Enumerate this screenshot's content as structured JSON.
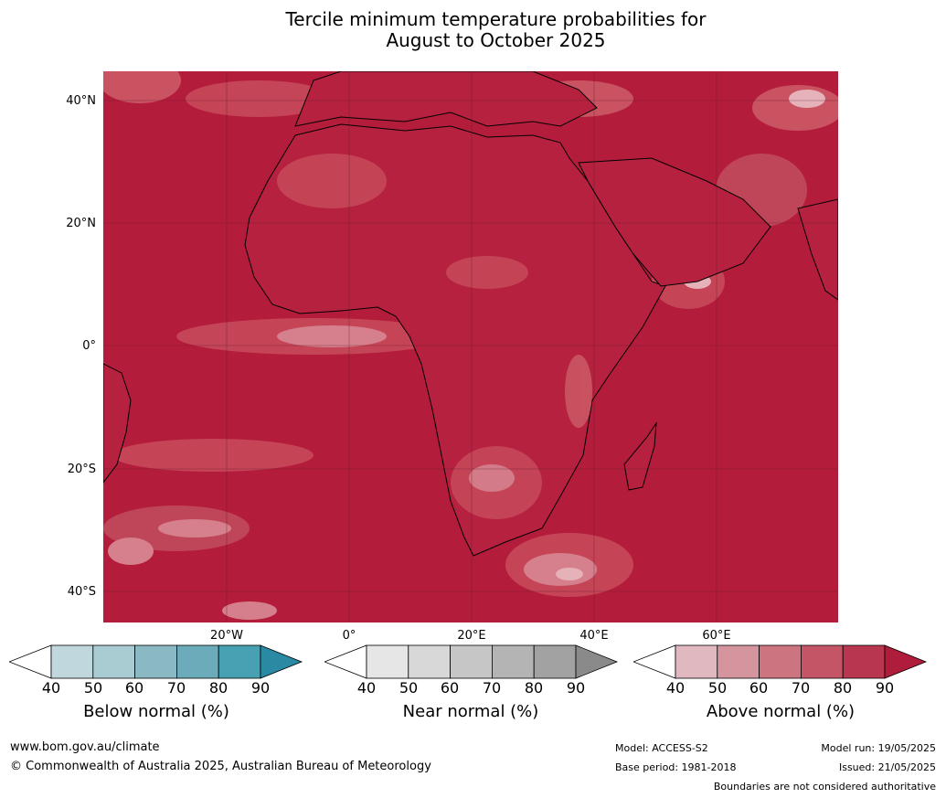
{
  "title_line1": "Tercile minimum temperature probabilities for",
  "title_line2": "August to October 2025",
  "lat_labels": [
    "40°N",
    "20°N",
    "0°",
    "20°S",
    "40°S"
  ],
  "lon_labels": [
    "20°W",
    "0°",
    "20°E",
    "40°E",
    "60°E"
  ],
  "colorbars": [
    {
      "title": "Below normal (%)",
      "ticks": [
        "40",
        "50",
        "60",
        "70",
        "80",
        "90"
      ],
      "colors": [
        "#c0d8dd",
        "#a9cbd2",
        "#8ab9c4",
        "#6cacba",
        "#47a1b2",
        "#2a8aa4"
      ]
    },
    {
      "title": "Near normal (%)",
      "ticks": [
        "40",
        "50",
        "60",
        "70",
        "80",
        "90"
      ],
      "colors": [
        "#e6e6e6",
        "#d8d8d8",
        "#c6c6c6",
        "#b4b4b4",
        "#a2a2a2",
        "#8a8a8a"
      ]
    },
    {
      "title": "Above normal (%)",
      "ticks": [
        "40",
        "50",
        "60",
        "70",
        "80",
        "90"
      ],
      "colors": [
        "#e0b8bf",
        "#d4959f",
        "#cc7580",
        "#c35566",
        "#b83650",
        "#b01c3b"
      ]
    }
  ],
  "footer": {
    "website": "www.bom.gov.au/climate",
    "copyright": "© Commonwealth of Australia 2025, Australian Bureau of Meteorology",
    "model": "Model: ACCESS-S2",
    "base_period": "Base period: 1981-2018",
    "model_run": "Model run: 19/05/2025",
    "issued": "Issued: 21/05/2025",
    "boundaries_note": "Boundaries are not considered authoritative"
  },
  "map_colors": {
    "ocean_base": "#b41c3c",
    "light": "#c9555f",
    "lighter": "#d98b95",
    "lightest": "#ecc3c8"
  }
}
